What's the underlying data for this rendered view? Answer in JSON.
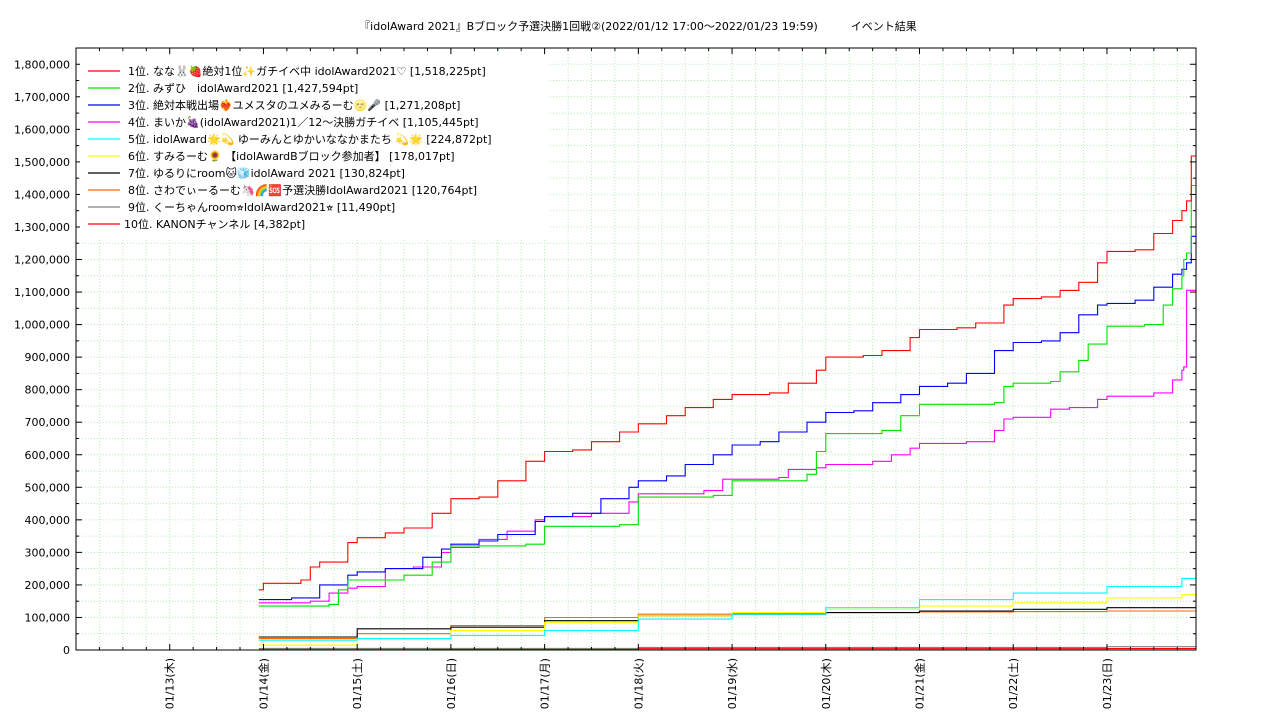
{
  "chart_data": {
    "type": "line",
    "title": "『idolAward 2021』Bブロック予選決勝1回戦②(2022/01/12 17:00～2022/01/23 19:59)　　　イベント結果",
    "xlabel": "",
    "ylabel": "",
    "ylim": [
      0,
      1850000
    ],
    "xlim": [
      -1,
      10.95
    ],
    "grid": true,
    "legend_position": "top-left",
    "yticks": [
      0,
      100000,
      200000,
      300000,
      400000,
      500000,
      600000,
      700000,
      800000,
      900000,
      1000000,
      1100000,
      1200000,
      1300000,
      1400000,
      1500000,
      1600000,
      1700000,
      1800000
    ],
    "ytick_labels": [
      "0",
      "100,000",
      "200,000",
      "300,000",
      "400,000",
      "500,000",
      "600,000",
      "700,000",
      "800,000",
      "900,000",
      "1,000,000",
      "1,100,000",
      "1,200,000",
      "1,300,000",
      "1,400,000",
      "1,500,000",
      "1,600,000",
      "1,700,000",
      "1,800,000"
    ],
    "xtick_labels": [
      "01/13(木)",
      "01/14(金)",
      "01/15(土)",
      "01/16(日)",
      "01/17(月)",
      "01/18(火)",
      "01/19(水)",
      "01/20(木)",
      "01/21(金)",
      "01/22(土)",
      "01/23(日)"
    ],
    "series": [
      {
        "name": "1位. なな🐰🍓絶対1位✨ガチイベ中 idolAward2021♡ [1,518,225pt]",
        "color": "#ff0000",
        "x": [
          0.95,
          1.0,
          1.4,
          1.5,
          1.6,
          1.9,
          2.0,
          2.3,
          2.5,
          2.8,
          3.0,
          3.3,
          3.5,
          3.8,
          4.0,
          4.3,
          4.5,
          4.8,
          5.0,
          5.3,
          5.5,
          5.8,
          6.0,
          6.4,
          6.6,
          6.9,
          7.0,
          7.4,
          7.6,
          7.9,
          8.0,
          8.4,
          8.6,
          8.9,
          9.0,
          9.3,
          9.5,
          9.7,
          9.9,
          10.0,
          10.3,
          10.5,
          10.7,
          10.8,
          10.85,
          10.9,
          10.95
        ],
        "y": [
          185000,
          205000,
          215000,
          255000,
          270000,
          330000,
          345000,
          360000,
          375000,
          420000,
          465000,
          470000,
          520000,
          580000,
          610000,
          615000,
          640000,
          670000,
          695000,
          720000,
          745000,
          770000,
          785000,
          790000,
          820000,
          860000,
          900000,
          905000,
          920000,
          960000,
          985000,
          990000,
          1005000,
          1060000,
          1080000,
          1085000,
          1105000,
          1130000,
          1190000,
          1225000,
          1230000,
          1280000,
          1320000,
          1350000,
          1380000,
          1518225,
          1518225
        ]
      },
      {
        "name": "2位. みずひ　idolAward2021 [1,427,594pt]",
        "color": "#00e000",
        "x": [
          0.95,
          1.7,
          1.8,
          1.9,
          2.5,
          2.8,
          3.0,
          3.8,
          4.0,
          4.8,
          5.0,
          5.8,
          6.0,
          6.8,
          6.9,
          7.0,
          7.6,
          7.8,
          8.0,
          8.8,
          8.9,
          9.0,
          9.4,
          9.5,
          9.7,
          9.8,
          10.0,
          10.4,
          10.6,
          10.7,
          10.8,
          10.82,
          10.85,
          10.9,
          10.95
        ],
        "y": [
          135000,
          140000,
          185000,
          215000,
          230000,
          270000,
          320000,
          325000,
          380000,
          385000,
          470000,
          475000,
          520000,
          540000,
          610000,
          665000,
          675000,
          720000,
          755000,
          760000,
          810000,
          820000,
          825000,
          855000,
          890000,
          940000,
          995000,
          1000000,
          1060000,
          1110000,
          1150000,
          1200000,
          1220000,
          1427594,
          1427594
        ]
      },
      {
        "name": "3位. 絶対本戦出場❤️‍🔥ユメスタのユメみるーむ🌝🎤 [1,271,208pt]",
        "color": "#0000ff",
        "x": [
          0.95,
          1.3,
          1.6,
          1.9,
          2.0,
          2.3,
          2.7,
          2.9,
          3.0,
          3.3,
          3.5,
          3.9,
          4.0,
          4.3,
          4.6,
          4.9,
          5.0,
          5.3,
          5.5,
          5.8,
          6.0,
          6.3,
          6.5,
          6.8,
          7.0,
          7.3,
          7.5,
          7.8,
          8.0,
          8.3,
          8.5,
          8.8,
          9.0,
          9.3,
          9.5,
          9.7,
          9.9,
          10.0,
          10.3,
          10.5,
          10.7,
          10.8,
          10.85,
          10.9,
          10.95
        ],
        "y": [
          155000,
          160000,
          200000,
          230000,
          240000,
          250000,
          285000,
          310000,
          325000,
          335000,
          355000,
          395000,
          410000,
          420000,
          465000,
          500000,
          520000,
          535000,
          570000,
          600000,
          630000,
          640000,
          670000,
          700000,
          730000,
          735000,
          760000,
          785000,
          810000,
          820000,
          850000,
          920000,
          945000,
          950000,
          975000,
          1030000,
          1060000,
          1065000,
          1075000,
          1115000,
          1155000,
          1170000,
          1190000,
          1271208,
          1271208
        ]
      },
      {
        "name": "4位. まいか🍇(idolAward2021)1／12〜決勝ガチイベ [1,105,445pt]",
        "color": "#ff00ff",
        "x": [
          0.95,
          1.5,
          1.7,
          1.9,
          2.0,
          2.3,
          2.6,
          2.9,
          3.0,
          3.3,
          3.6,
          3.9,
          4.0,
          4.5,
          4.9,
          5.0,
          5.7,
          5.9,
          6.0,
          6.5,
          6.6,
          6.9,
          7.0,
          7.5,
          7.7,
          7.9,
          8.0,
          8.5,
          8.8,
          8.9,
          9.0,
          9.4,
          9.6,
          9.9,
          10.0,
          10.5,
          10.7,
          10.8,
          10.82,
          10.85,
          10.95
        ],
        "y": [
          145000,
          150000,
          175000,
          190000,
          195000,
          250000,
          255000,
          300000,
          315000,
          340000,
          365000,
          400000,
          410000,
          420000,
          455000,
          480000,
          490000,
          525000,
          525000,
          530000,
          555000,
          560000,
          570000,
          580000,
          600000,
          620000,
          635000,
          640000,
          675000,
          710000,
          715000,
          740000,
          745000,
          770000,
          780000,
          790000,
          830000,
          860000,
          870000,
          1105445,
          1105445
        ]
      },
      {
        "name": "5位. idolAward🌟💫 ゆーみんとゆかいななかまたち 💫🌟 [224,872pt]",
        "color": "#00ffff",
        "x": [
          0.95,
          2.0,
          3.0,
          4.0,
          5.0,
          6.0,
          7.0,
          8.0,
          9.0,
          10.0,
          10.8,
          10.95
        ],
        "y": [
          30000,
          35000,
          45000,
          60000,
          95000,
          110000,
          130000,
          155000,
          175000,
          195000,
          220000,
          224872
        ]
      },
      {
        "name": "6位. すみるーむ🌻 【idolAwardBブロック参加者】 [178,017pt]",
        "color": "#ffff00",
        "x": [
          0.95,
          2.0,
          3.0,
          4.0,
          5.0,
          6.0,
          7.0,
          8.0,
          9.0,
          10.0,
          10.8,
          10.95
        ],
        "y": [
          15000,
          35000,
          60000,
          85000,
          105000,
          115000,
          125000,
          135000,
          145000,
          160000,
          170000,
          178017
        ]
      },
      {
        "name": "7位. ゆるりにroom🐱🧊idolAward 2021 [130,824pt]",
        "color": "#000000",
        "x": [
          0.95,
          2.0,
          3.0,
          4.0,
          5.0,
          6.0,
          7.0,
          8.0,
          9.0,
          10.0,
          10.95
        ],
        "y": [
          40000,
          65000,
          70000,
          90000,
          105000,
          110000,
          115000,
          120000,
          125000,
          130000,
          130824
        ]
      },
      {
        "name": "8位. さわでぃーるーむ🦄🌈🆘予選決勝IdolAward2021 [120,764pt]",
        "color": "#ff6600",
        "x": [
          0.95,
          2.0,
          3.0,
          4.0,
          5.0,
          6.0,
          7.0,
          8.0,
          9.0,
          10.0,
          10.95
        ],
        "y": [
          35000,
          50000,
          75000,
          100000,
          110000,
          112000,
          115000,
          117000,
          118000,
          120000,
          120764
        ]
      },
      {
        "name": "9位. くーちゃんroom⭐︎IdolAward2021⭐︎ [11,490pt]",
        "color": "#808080",
        "x": [
          0.95,
          5.0,
          10.0,
          10.95
        ],
        "y": [
          5000,
          8000,
          10000,
          11490
        ]
      },
      {
        "name": "10位. KANONチャンネル [4,382pt]",
        "color": "#ff0000",
        "x": [
          0.95,
          2.8,
          5.0,
          10.0,
          10.95
        ],
        "y": [
          1000,
          3000,
          4000,
          4300,
          4382
        ]
      }
    ]
  }
}
